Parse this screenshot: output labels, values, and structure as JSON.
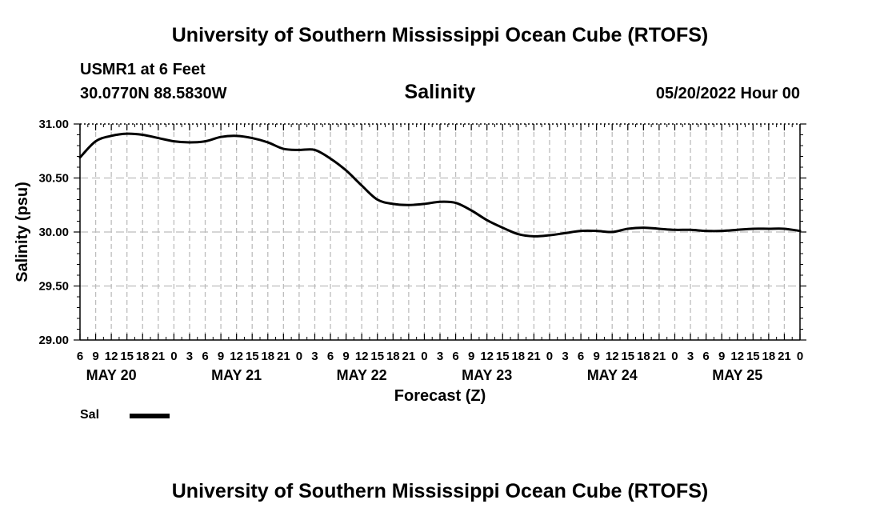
{
  "header": {
    "title": "University of Southern Mississippi Ocean Cube (RTOFS)",
    "station": "USMR1 at 6 Feet",
    "coords": "30.0770N  88.5830W",
    "variable": "Salinity",
    "datetime": "05/20/2022 Hour 00"
  },
  "footer": {
    "title": "University of Southern Mississippi Ocean Cube (RTOFS)"
  },
  "legend": {
    "label": "Sal"
  },
  "chart_data": {
    "type": "line",
    "title": "Salinity",
    "xlabel": "Forecast (Z)",
    "ylabel": "Salinity (psu)",
    "ylim": [
      29.0,
      31.0
    ],
    "xlim": [
      6,
      144
    ],
    "y_ticks": [
      "29.00",
      "29.50",
      "30.00",
      "30.50",
      "31.00"
    ],
    "x_tick_step_hours": 3,
    "x_tick_labels": [
      "6",
      "9",
      "12",
      "15",
      "18",
      "21",
      "0",
      "3",
      "6",
      "9",
      "12",
      "15",
      "18",
      "21",
      "0",
      "3",
      "6",
      "9",
      "12",
      "15",
      "18",
      "21",
      "0",
      "3",
      "6",
      "9",
      "12",
      "15",
      "18",
      "21",
      "0",
      "3",
      "6",
      "9",
      "12",
      "15",
      "18",
      "21",
      "0",
      "3",
      "6",
      "9",
      "12",
      "15",
      "18",
      "21",
      "0"
    ],
    "day_labels": [
      {
        "label": "MAY 20",
        "hour": 12
      },
      {
        "label": "MAY 21",
        "hour": 36
      },
      {
        "label": "MAY 22",
        "hour": 60
      },
      {
        "label": "MAY 23",
        "hour": 84
      },
      {
        "label": "MAY 24",
        "hour": 108
      },
      {
        "label": "MAY 25",
        "hour": 132
      }
    ],
    "grid": true,
    "series": [
      {
        "name": "Sal",
        "x": [
          6,
          9,
          12,
          15,
          18,
          21,
          24,
          27,
          30,
          33,
          36,
          39,
          42,
          45,
          48,
          51,
          54,
          57,
          60,
          63,
          66,
          69,
          72,
          75,
          78,
          81,
          84,
          87,
          90,
          93,
          96,
          99,
          102,
          105,
          108,
          111,
          114,
          117,
          120,
          123,
          126,
          129,
          132,
          135,
          138,
          141,
          144
        ],
        "values": [
          30.69,
          30.84,
          30.89,
          30.91,
          30.9,
          30.87,
          30.84,
          30.83,
          30.84,
          30.88,
          30.89,
          30.87,
          30.83,
          30.77,
          30.76,
          30.76,
          30.68,
          30.57,
          30.43,
          30.3,
          30.26,
          30.25,
          30.26,
          30.28,
          30.27,
          30.2,
          30.11,
          30.04,
          29.98,
          29.96,
          29.97,
          29.99,
          30.01,
          30.01,
          30.0,
          30.03,
          30.04,
          30.03,
          30.02,
          30.02,
          30.01,
          30.01,
          30.02,
          30.03,
          30.03,
          30.03,
          30.01
        ]
      }
    ]
  }
}
